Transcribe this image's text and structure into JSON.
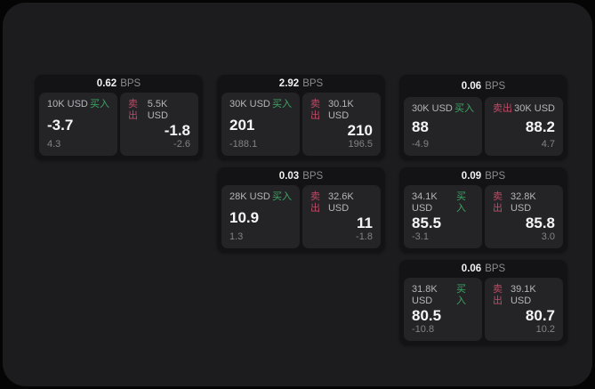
{
  "labels": {
    "buy": "买入",
    "sell": "卖出",
    "bps_unit": "BPS"
  },
  "colors": {
    "buy_green": "#3fa465",
    "sell_red": "#c14a67",
    "surface": "#1c1c1e",
    "card": "#131315",
    "panel": "#242427"
  },
  "cards": [
    {
      "bps": "0.62",
      "row": 1,
      "col": 1,
      "buy": {
        "size": "10K USD",
        "value": "-3.7",
        "delta": "4.3"
      },
      "sell": {
        "size": "5.5K USD",
        "value": "-1.8",
        "delta": "-2.6"
      }
    },
    {
      "bps": "2.92",
      "row": 1,
      "col": 2,
      "buy": {
        "size": "30K USD",
        "value": "201",
        "delta": "-188.1"
      },
      "sell": {
        "size": "30.1K USD",
        "value": "210",
        "delta": "196.5"
      }
    },
    {
      "bps": "0.06",
      "row": 1,
      "col": 3,
      "buy": {
        "size": "30K USD",
        "value": "88",
        "delta": "-4.9"
      },
      "sell": {
        "size": "30K USD",
        "value": "88.2",
        "delta": "4.7"
      }
    },
    {
      "bps": "0.03",
      "row": 2,
      "col": 2,
      "buy": {
        "size": "28K USD",
        "value": "10.9",
        "delta": "1.3"
      },
      "sell": {
        "size": "32.6K USD",
        "value": "11",
        "delta": "-1.8"
      }
    },
    {
      "bps": "0.09",
      "row": 2,
      "col": 3,
      "buy": {
        "size": "34.1K USD",
        "value": "85.5",
        "delta": "-3.1"
      },
      "sell": {
        "size": "32.8K USD",
        "value": "85.8",
        "delta": "3.0"
      }
    },
    {
      "bps": "0.06",
      "row": 3,
      "col": 3,
      "buy": {
        "size": "31.8K USD",
        "value": "80.5",
        "delta": "-10.8"
      },
      "sell": {
        "size": "39.1K USD",
        "value": "80.7",
        "delta": "10.2"
      }
    }
  ]
}
